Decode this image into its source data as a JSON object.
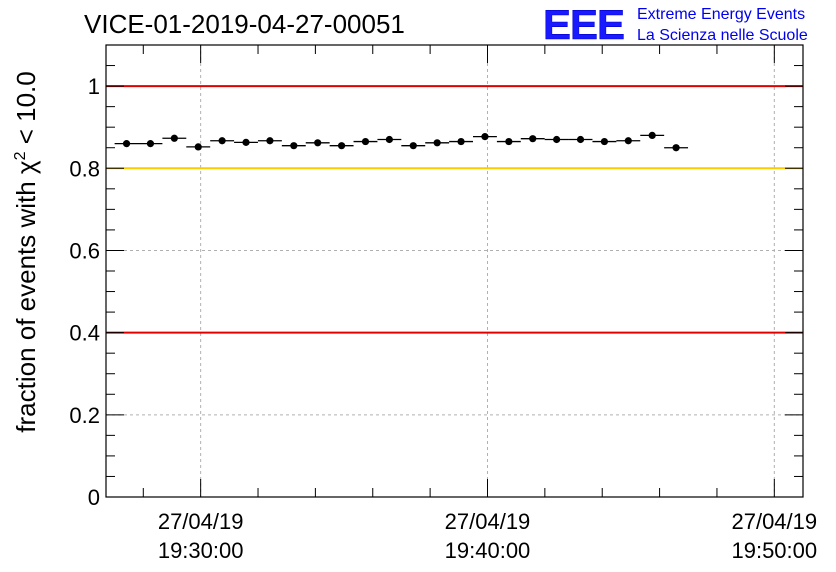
{
  "header": {
    "title": "VICE-01-2019-04-27-00051",
    "logo_letters": "EEE",
    "logo_line1": "Extreme Energy Events",
    "logo_line2": "La Scienza nelle Scuole"
  },
  "chart_data": {
    "type": "scatter",
    "title": "VICE-01-2019-04-27-00051",
    "ylabel_prefix": "fraction of events with ",
    "ylabel_symbol": "χ",
    "ylabel_sup": "2",
    "ylabel_suffix": " < 10.0",
    "xlabel": "",
    "ylim": [
      0,
      1.1
    ],
    "xlim_minutes": [
      -3.3,
      21.0
    ],
    "yticks": [
      {
        "value": 0,
        "label": "0"
      },
      {
        "value": 0.2,
        "label": "0.2"
      },
      {
        "value": 0.4,
        "label": "0.4"
      },
      {
        "value": 0.6,
        "label": "0.6"
      },
      {
        "value": 0.8,
        "label": "0.8"
      },
      {
        "value": 1.0,
        "label": "1"
      }
    ],
    "xticks": [
      {
        "minute": 0,
        "date": "27/04/19",
        "time": "19:30:00"
      },
      {
        "minute": 10,
        "date": "27/04/19",
        "time": "19:40:00"
      },
      {
        "minute": 20,
        "date": "27/04/19",
        "time": "19:50:00"
      }
    ],
    "x_minor_step_minutes": 2,
    "x_start_minute": -3.0,
    "bin_width_minutes": 0.833,
    "values": [
      0.86,
      0.86,
      0.873,
      0.852,
      0.867,
      0.863,
      0.867,
      0.855,
      0.862,
      0.855,
      0.865,
      0.87,
      0.855,
      0.862,
      0.865,
      0.877,
      0.865,
      0.872,
      0.87,
      0.87,
      0.865,
      0.867,
      0.88,
      0.85
    ],
    "reference_lines": [
      {
        "value": 1.0,
        "color": "#e00000"
      },
      {
        "value": 0.8,
        "color": "#ffcc00"
      },
      {
        "value": 0.4,
        "color": "#e00000"
      }
    ],
    "grid": true,
    "marker_color": "#000000"
  }
}
